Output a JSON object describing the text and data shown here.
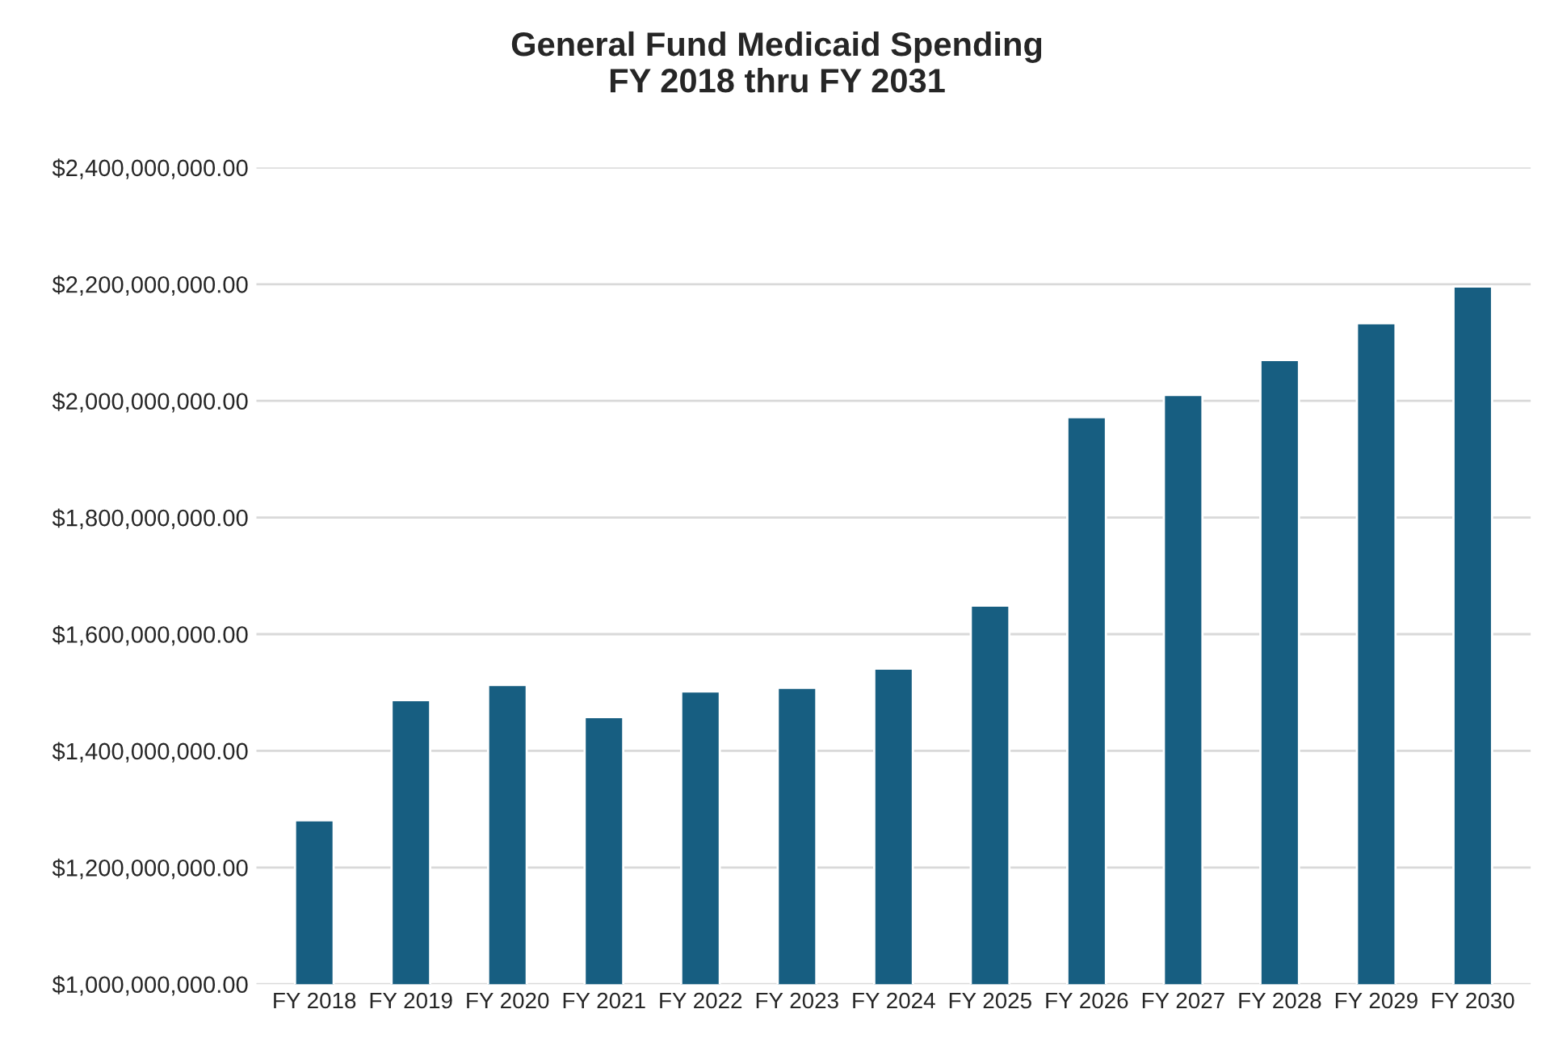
{
  "chart_data": {
    "type": "bar",
    "title": "General Fund Medicaid Spending\nFY 2018 thru FY 2031",
    "categories": [
      "FY 2018",
      "FY 2019",
      "FY 2020",
      "FY 2021",
      "FY 2022",
      "FY 2023",
      "FY 2024",
      "FY 2025",
      "FY 2026",
      "FY 2027",
      "FY 2028",
      "FY 2029",
      "FY 2030"
    ],
    "values": [
      1281000000,
      1487000000,
      1513000000,
      1458000000,
      1502000000,
      1508000000,
      1541000000,
      1649000000,
      1972000000,
      2010000000,
      2070000000,
      2133000000,
      2196000000
    ],
    "color": "#175e81",
    "ylim": [
      1000000000,
      2400000000
    ],
    "yticks": [
      {
        "value": 1000000000,
        "label": "$1,000,000,000.00"
      },
      {
        "value": 1200000000,
        "label": "$1,200,000,000.00"
      },
      {
        "value": 1400000000,
        "label": "$1,400,000,000.00"
      },
      {
        "value": 1600000000,
        "label": "$1,600,000,000.00"
      },
      {
        "value": 1800000000,
        "label": "$1,800,000,000.00"
      },
      {
        "value": 2000000000,
        "label": "$2,000,000,000.00"
      },
      {
        "value": 2200000000,
        "label": "$2,200,000,000.00"
      },
      {
        "value": 2400000000,
        "label": "$2,400,000,000.00"
      }
    ],
    "grid": "y",
    "legend": false
  }
}
